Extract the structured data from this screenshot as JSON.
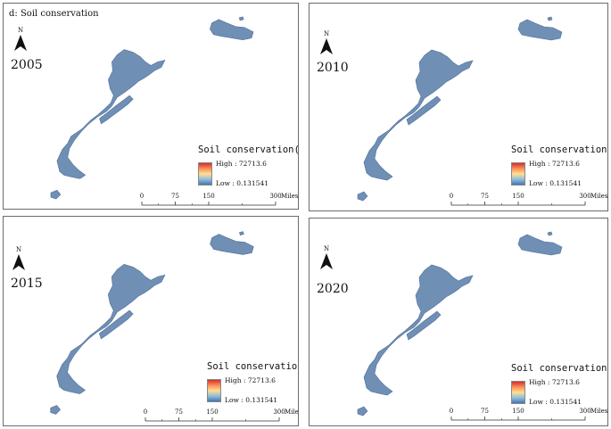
{
  "figure_title": "d: Soil conservation",
  "north_label": "N",
  "legend": {
    "title": "Soil conservation(t)",
    "high": "High : 72713.6",
    "low": "Low : 0.131541"
  },
  "scale_bar": {
    "ticks": [
      "0",
      "75",
      "150",
      "300"
    ],
    "unit": "Miles"
  },
  "panels": [
    {
      "year": "2005"
    },
    {
      "year": "2010"
    },
    {
      "year": "2015"
    },
    {
      "year": "2020"
    }
  ],
  "colors": {
    "map_fill": "#6f8fb5",
    "map_edge": "#4f6f98",
    "frame": "#6b6b6b"
  }
}
